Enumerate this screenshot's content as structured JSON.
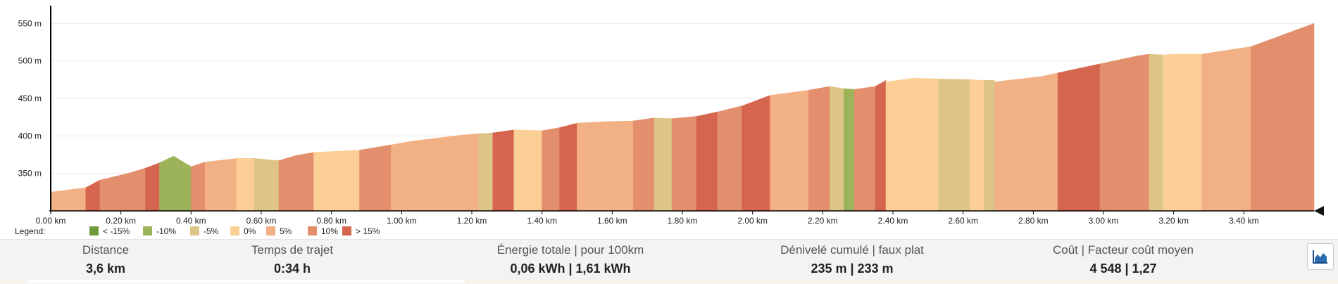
{
  "chart_data": {
    "type": "area",
    "x_unit": "km",
    "y_unit": "m",
    "xlim": [
      0,
      3.6
    ],
    "ylim": [
      300,
      555
    ],
    "x_ticks": [
      0.0,
      0.2,
      0.4,
      0.6,
      0.8,
      1.0,
      1.2,
      1.4,
      1.6,
      1.8,
      2.0,
      2.2,
      2.4,
      2.6,
      2.8,
      3.0,
      3.2,
      3.4
    ],
    "x_tick_labels": [
      "0.00 km",
      "0.20 km",
      "0.40 km",
      "0.60 km",
      "0.80 km",
      "1.00 km",
      "1.20 km",
      "1.40 km",
      "1.60 km",
      "1.80 km",
      "2.00 km",
      "2.20 km",
      "2.40 km",
      "2.60 km",
      "2.80 km",
      "3.00 km",
      "3.20 km",
      "3.40 km"
    ],
    "y_ticks": [
      350,
      400,
      450,
      500,
      550
    ],
    "y_tick_labels": [
      "350 m",
      "400 m",
      "450 m",
      "500 m",
      "550 m"
    ],
    "legend": {
      "title": "Legend:",
      "placement": "bottom-left",
      "entries": [
        {
          "label": "< -15%",
          "color": "#6f9a3c"
        },
        {
          "label": "-10%",
          "color": "#9cb35a"
        },
        {
          "label": "-5%",
          "color": "#dcc586"
        },
        {
          "label": "0%",
          "color": "#fccf97"
        },
        {
          "label": "5%",
          "color": "#f2b085"
        },
        {
          "label": "10%",
          "color": "#e38f6d"
        },
        {
          "label": "> 15%",
          "color": "#d6654f"
        }
      ]
    },
    "segments": [
      {
        "x": [
          0.0,
          0.1
        ],
        "y": [
          325,
          331
        ],
        "color": "#f2b085"
      },
      {
        "x": [
          0.1,
          0.14
        ],
        "y": [
          331,
          341
        ],
        "color": "#d6654f"
      },
      {
        "x": [
          0.14,
          0.22
        ],
        "y": [
          341,
          350
        ],
        "color": "#e38f6d"
      },
      {
        "x": [
          0.22,
          0.27
        ],
        "y": [
          350,
          357
        ],
        "color": "#e38f6d"
      },
      {
        "x": [
          0.27,
          0.31
        ],
        "y": [
          357,
          364
        ],
        "color": "#d6654f"
      },
      {
        "x": [
          0.31,
          0.35
        ],
        "y": [
          364,
          373
        ],
        "color": "#9cb35a"
      },
      {
        "x": [
          0.35,
          0.4
        ],
        "y": [
          373,
          359
        ],
        "color": "#9cb35a"
      },
      {
        "x": [
          0.4,
          0.44
        ],
        "y": [
          359,
          365
        ],
        "color": "#e38f6d"
      },
      {
        "x": [
          0.44,
          0.53
        ],
        "y": [
          365,
          370
        ],
        "color": "#f2b085"
      },
      {
        "x": [
          0.53,
          0.58
        ],
        "y": [
          370,
          370
        ],
        "color": "#fccf97"
      },
      {
        "x": [
          0.58,
          0.65
        ],
        "y": [
          370,
          367
        ],
        "color": "#dcc586"
      },
      {
        "x": [
          0.65,
          0.7
        ],
        "y": [
          367,
          374
        ],
        "color": "#e38f6d"
      },
      {
        "x": [
          0.7,
          0.75
        ],
        "y": [
          374,
          378
        ],
        "color": "#e38f6d"
      },
      {
        "x": [
          0.75,
          0.88
        ],
        "y": [
          378,
          381
        ],
        "color": "#fccf97"
      },
      {
        "x": [
          0.88,
          0.93
        ],
        "y": [
          381,
          385
        ],
        "color": "#e38f6d"
      },
      {
        "x": [
          0.93,
          0.97
        ],
        "y": [
          385,
          388
        ],
        "color": "#e38f6d"
      },
      {
        "x": [
          0.97,
          1.03
        ],
        "y": [
          388,
          393
        ],
        "color": "#f2b085"
      },
      {
        "x": [
          1.03,
          1.1
        ],
        "y": [
          393,
          397
        ],
        "color": "#f2b085"
      },
      {
        "x": [
          1.1,
          1.17
        ],
        "y": [
          397,
          401
        ],
        "color": "#f2b085"
      },
      {
        "x": [
          1.17,
          1.22
        ],
        "y": [
          401,
          403
        ],
        "color": "#f2b085"
      },
      {
        "x": [
          1.22,
          1.26
        ],
        "y": [
          403,
          404
        ],
        "color": "#dcc586"
      },
      {
        "x": [
          1.26,
          1.32
        ],
        "y": [
          404,
          408
        ],
        "color": "#d6654f"
      },
      {
        "x": [
          1.32,
          1.4
        ],
        "y": [
          408,
          407
        ],
        "color": "#fccf97"
      },
      {
        "x": [
          1.4,
          1.45
        ],
        "y": [
          407,
          411
        ],
        "color": "#e38f6d"
      },
      {
        "x": [
          1.45,
          1.5
        ],
        "y": [
          411,
          417
        ],
        "color": "#d6654f"
      },
      {
        "x": [
          1.5,
          1.58
        ],
        "y": [
          417,
          419
        ],
        "color": "#f2b085"
      },
      {
        "x": [
          1.58,
          1.66
        ],
        "y": [
          419,
          420
        ],
        "color": "#f2b085"
      },
      {
        "x": [
          1.66,
          1.72
        ],
        "y": [
          420,
          424
        ],
        "color": "#e38f6d"
      },
      {
        "x": [
          1.72,
          1.77
        ],
        "y": [
          424,
          423
        ],
        "color": "#dcc586"
      },
      {
        "x": [
          1.77,
          1.84
        ],
        "y": [
          423,
          426
        ],
        "color": "#e38f6d"
      },
      {
        "x": [
          1.84,
          1.9
        ],
        "y": [
          426,
          432
        ],
        "color": "#d6654f"
      },
      {
        "x": [
          1.9,
          1.97
        ],
        "y": [
          432,
          440
        ],
        "color": "#e38f6d"
      },
      {
        "x": [
          1.97,
          2.05
        ],
        "y": [
          440,
          454
        ],
        "color": "#d6654f"
      },
      {
        "x": [
          2.05,
          2.16
        ],
        "y": [
          454,
          461
        ],
        "color": "#f2b085"
      },
      {
        "x": [
          2.16,
          2.22
        ],
        "y": [
          461,
          466
        ],
        "color": "#e38f6d"
      },
      {
        "x": [
          2.22,
          2.26
        ],
        "y": [
          466,
          463
        ],
        "color": "#dcc586"
      },
      {
        "x": [
          2.26,
          2.29
        ],
        "y": [
          463,
          462
        ],
        "color": "#9cb35a"
      },
      {
        "x": [
          2.29,
          2.35
        ],
        "y": [
          462,
          466
        ],
        "color": "#e38f6d"
      },
      {
        "x": [
          2.35,
          2.38
        ],
        "y": [
          466,
          474
        ],
        "color": "#d6654f"
      },
      {
        "x": [
          2.38,
          2.46
        ],
        "y": [
          472,
          477
        ],
        "color": "#fccf97"
      },
      {
        "x": [
          2.46,
          2.53
        ],
        "y": [
          477,
          476
        ],
        "color": "#fccf97"
      },
      {
        "x": [
          2.53,
          2.62
        ],
        "y": [
          476,
          475
        ],
        "color": "#dcc586"
      },
      {
        "x": [
          2.62,
          2.66
        ],
        "y": [
          475,
          474
        ],
        "color": "#fccf97"
      },
      {
        "x": [
          2.66,
          2.69
        ],
        "y": [
          474,
          474
        ],
        "color": "#dcc586"
      },
      {
        "x": [
          2.69,
          2.82
        ],
        "y": [
          472,
          479
        ],
        "color": "#f2b085"
      },
      {
        "x": [
          2.82,
          2.87
        ],
        "y": [
          479,
          484
        ],
        "color": "#f2b085"
      },
      {
        "x": [
          2.87,
          2.9
        ],
        "y": [
          484,
          487
        ],
        "color": "#d6654f"
      },
      {
        "x": [
          2.9,
          2.99
        ],
        "y": [
          487,
          496
        ],
        "color": "#d6654f"
      },
      {
        "x": [
          2.99,
          3.03
        ],
        "y": [
          496,
          500
        ],
        "color": "#e38f6d"
      },
      {
        "x": [
          3.03,
          3.07
        ],
        "y": [
          500,
          504
        ],
        "color": "#e38f6d"
      },
      {
        "x": [
          3.07,
          3.1
        ],
        "y": [
          504,
          507
        ],
        "color": "#e38f6d"
      },
      {
        "x": [
          3.1,
          3.13
        ],
        "y": [
          507,
          509
        ],
        "color": "#e38f6d"
      },
      {
        "x": [
          3.13,
          3.17
        ],
        "y": [
          509,
          508
        ],
        "color": "#dcc586"
      },
      {
        "x": [
          3.17,
          3.2
        ],
        "y": [
          508,
          509
        ],
        "color": "#fccf97"
      },
      {
        "x": [
          3.2,
          3.28
        ],
        "y": [
          509,
          509
        ],
        "color": "#fccf97"
      },
      {
        "x": [
          3.28,
          3.42
        ],
        "y": [
          509,
          519
        ],
        "color": "#f2b085"
      },
      {
        "x": [
          3.42,
          3.6
        ],
        "y": [
          519,
          550
        ],
        "color": "#e38f6d"
      }
    ]
  },
  "stats": [
    {
      "label": "Distance",
      "value": "3,6 km"
    },
    {
      "label": "Temps de trajet",
      "value": "0:34 h"
    },
    {
      "label": "Énergie totale | pour 100km",
      "value": "0,06 kWh | 1,61 kWh"
    },
    {
      "label": "Dénivelé cumulé | faux plat",
      "value": "235 m | 233 m"
    },
    {
      "label": "Coût | Facteur coût moyen",
      "value": "4 548 | 1,27"
    }
  ],
  "toolbar": {
    "chart_button_icon": "area-chart-icon"
  }
}
